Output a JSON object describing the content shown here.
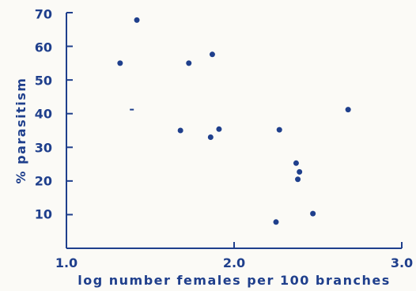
{
  "chart_data": {
    "type": "scatter",
    "title": "",
    "xlabel": "log number females per 100 branches",
    "ylabel": "% parasitism",
    "xlim": [
      1.0,
      3.0
    ],
    "ylim": [
      0,
      70
    ],
    "grid": false,
    "x_ticks": [
      "1.0",
      "2.0",
      "3.0"
    ],
    "y_ticks": [
      "10",
      "20",
      "30",
      "40",
      "50",
      "60",
      "70"
    ],
    "x_tick_values": [
      1.0,
      2.0,
      3.0
    ],
    "y_tick_values": [
      10,
      20,
      30,
      40,
      50,
      60,
      70
    ],
    "points": [
      {
        "x": 1.42,
        "y": 67.8
      },
      {
        "x": 1.32,
        "y": 55.0
      },
      {
        "x": 1.73,
        "y": 55.0
      },
      {
        "x": 1.87,
        "y": 57.6
      },
      {
        "x": 1.68,
        "y": 35.0
      },
      {
        "x": 1.86,
        "y": 33.0
      },
      {
        "x": 1.91,
        "y": 35.4
      },
      {
        "x": 2.27,
        "y": 35.2
      },
      {
        "x": 2.37,
        "y": 25.3
      },
      {
        "x": 2.39,
        "y": 22.7
      },
      {
        "x": 2.38,
        "y": 20.5
      },
      {
        "x": 2.47,
        "y": 10.3
      },
      {
        "x": 2.25,
        "y": 7.8
      },
      {
        "x": 2.68,
        "y": 41.2
      },
      {
        "x": 1.39,
        "y": 41.2,
        "marker": "small-dash"
      }
    ]
  }
}
